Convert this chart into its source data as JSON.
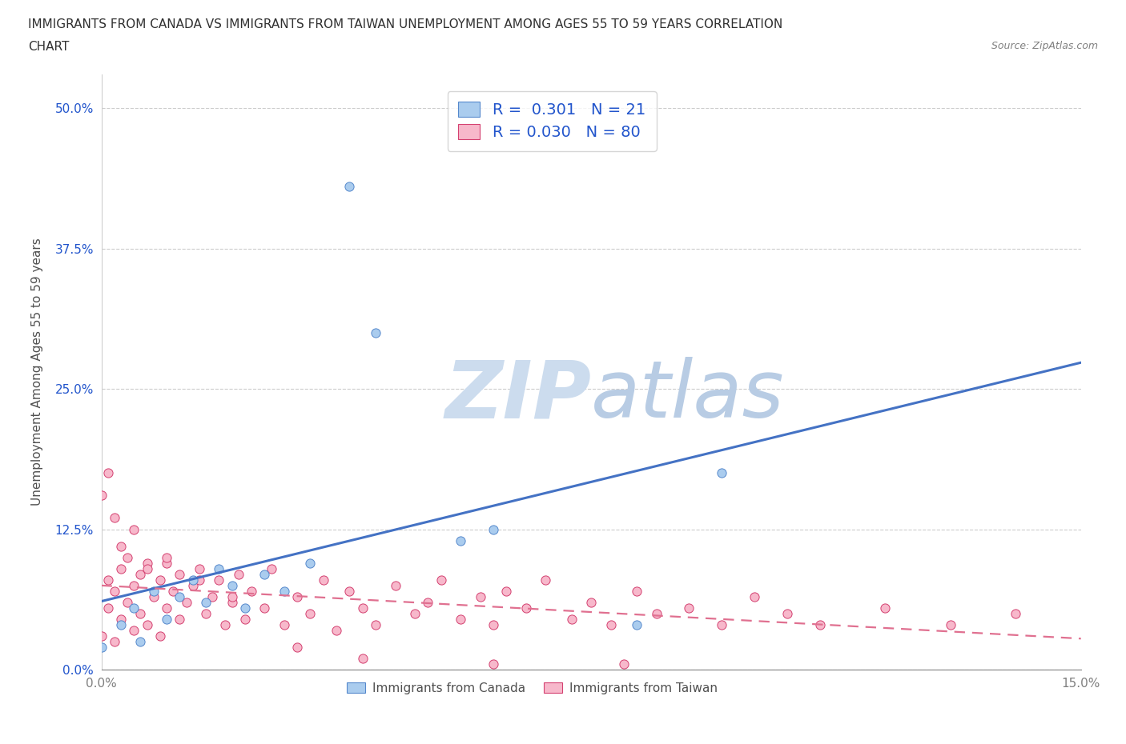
{
  "title_line1": "IMMIGRANTS FROM CANADA VS IMMIGRANTS FROM TAIWAN UNEMPLOYMENT AMONG AGES 55 TO 59 YEARS CORRELATION",
  "title_line2": "CHART",
  "source_text": "Source: ZipAtlas.com",
  "ylabel": "Unemployment Among Ages 55 to 59 years",
  "xlim": [
    0.0,
    0.15
  ],
  "ylim": [
    0.0,
    0.53
  ],
  "yticks": [
    0.0,
    0.125,
    0.25,
    0.375,
    0.5
  ],
  "ytick_labels": [
    "0.0%",
    "12.5%",
    "25.0%",
    "37.5%",
    "50.0%"
  ],
  "xticks": [
    0.0,
    0.15
  ],
  "xtick_labels": [
    "0.0%",
    "15.0%"
  ],
  "canada_R": "0.301",
  "canada_N": "21",
  "taiwan_R": "0.030",
  "taiwan_N": "80",
  "legend_label_canada": "Immigrants from Canada",
  "legend_label_taiwan": "Immigrants from Taiwan",
  "canada_color": "#aaccee",
  "taiwan_color": "#f7b8cb",
  "canada_edge_color": "#5588cc",
  "taiwan_edge_color": "#d44070",
  "canada_line_color": "#4472c4",
  "taiwan_line_color": "#e07090",
  "watermark_color": "#dce8f5",
  "background_color": "#ffffff",
  "title_color": "#303030",
  "axis_label_color": "#505050",
  "tick_color": "#808080",
  "grid_color": "#cccccc",
  "legend_text_color": "#2255cc",
  "canada_scatter_x": [
    0.0,
    0.003,
    0.005,
    0.006,
    0.008,
    0.01,
    0.012,
    0.014,
    0.016,
    0.018,
    0.02,
    0.022,
    0.025,
    0.028,
    0.032,
    0.038,
    0.042,
    0.055,
    0.06,
    0.082,
    0.095
  ],
  "canada_scatter_y": [
    0.02,
    0.04,
    0.055,
    0.025,
    0.07,
    0.045,
    0.065,
    0.08,
    0.06,
    0.09,
    0.075,
    0.055,
    0.085,
    0.07,
    0.095,
    0.43,
    0.3,
    0.115,
    0.125,
    0.04,
    0.175
  ],
  "taiwan_scatter_x": [
    0.0,
    0.001,
    0.001,
    0.002,
    0.002,
    0.003,
    0.003,
    0.004,
    0.004,
    0.005,
    0.005,
    0.006,
    0.006,
    0.007,
    0.007,
    0.008,
    0.009,
    0.009,
    0.01,
    0.01,
    0.011,
    0.012,
    0.012,
    0.013,
    0.014,
    0.015,
    0.016,
    0.017,
    0.018,
    0.019,
    0.02,
    0.021,
    0.022,
    0.023,
    0.025,
    0.026,
    0.028,
    0.03,
    0.032,
    0.034,
    0.036,
    0.038,
    0.04,
    0.042,
    0.045,
    0.048,
    0.05,
    0.052,
    0.055,
    0.058,
    0.06,
    0.062,
    0.065,
    0.068,
    0.072,
    0.075,
    0.078,
    0.082,
    0.085,
    0.09,
    0.095,
    0.1,
    0.105,
    0.11,
    0.12,
    0.13,
    0.14,
    0.0,
    0.001,
    0.002,
    0.003,
    0.005,
    0.007,
    0.01,
    0.015,
    0.02,
    0.03,
    0.04,
    0.06,
    0.08
  ],
  "taiwan_scatter_y": [
    0.03,
    0.055,
    0.08,
    0.025,
    0.07,
    0.045,
    0.09,
    0.06,
    0.1,
    0.035,
    0.075,
    0.05,
    0.085,
    0.04,
    0.095,
    0.065,
    0.03,
    0.08,
    0.055,
    0.095,
    0.07,
    0.045,
    0.085,
    0.06,
    0.075,
    0.09,
    0.05,
    0.065,
    0.08,
    0.04,
    0.06,
    0.085,
    0.045,
    0.07,
    0.055,
    0.09,
    0.04,
    0.065,
    0.05,
    0.08,
    0.035,
    0.07,
    0.055,
    0.04,
    0.075,
    0.05,
    0.06,
    0.08,
    0.045,
    0.065,
    0.04,
    0.07,
    0.055,
    0.08,
    0.045,
    0.06,
    0.04,
    0.07,
    0.05,
    0.055,
    0.04,
    0.065,
    0.05,
    0.04,
    0.055,
    0.04,
    0.05,
    0.155,
    0.175,
    0.135,
    0.11,
    0.125,
    0.09,
    0.1,
    0.08,
    0.065,
    0.02,
    0.01,
    0.005,
    0.005
  ]
}
